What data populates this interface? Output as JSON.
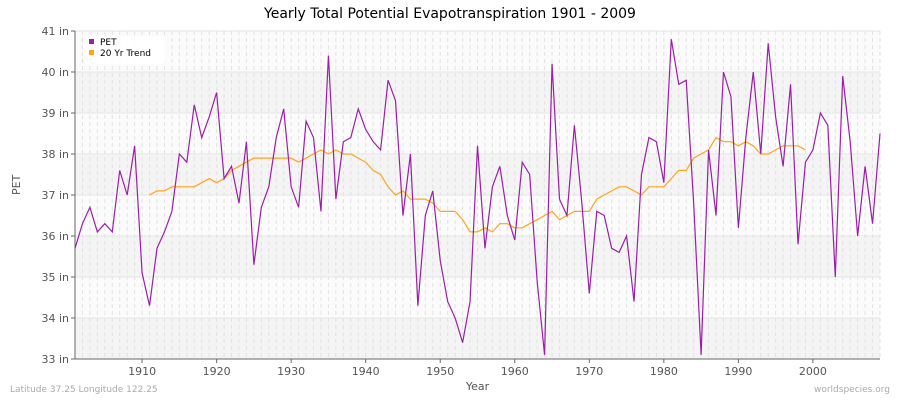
{
  "chart_data": {
    "type": "line",
    "title": "Yearly Total Potential Evapotranspiration 1901 - 2009",
    "xlabel": "Year",
    "ylabel": "PET",
    "xlim": [
      1901,
      2009
    ],
    "ylim": [
      33,
      41
    ],
    "y_ticks": [
      "33 in",
      "34 in",
      "35 in",
      "36 in",
      "37 in",
      "38 in",
      "39 in",
      "40 in",
      "41 in"
    ],
    "x_ticks": [
      "1910",
      "1920",
      "1930",
      "1940",
      "1950",
      "1960",
      "1970",
      "1980",
      "1990",
      "2000"
    ],
    "grid": true,
    "legend": "top-left",
    "series": [
      {
        "name": "PET",
        "color": "#9c1ea8",
        "start_year": 1901,
        "values": [
          35.7,
          36.3,
          36.7,
          36.1,
          36.3,
          36.1,
          37.6,
          37.0,
          38.2,
          35.1,
          34.3,
          35.7,
          36.1,
          36.6,
          38.0,
          37.8,
          39.2,
          38.4,
          38.9,
          39.5,
          37.4,
          37.7,
          36.8,
          38.3,
          35.3,
          36.7,
          37.2,
          38.4,
          39.1,
          37.2,
          36.7,
          38.8,
          38.4,
          36.6,
          40.4,
          36.9,
          38.3,
          38.4,
          39.1,
          38.6,
          38.3,
          38.1,
          39.8,
          39.3,
          36.5,
          38.0,
          34.3,
          36.5,
          37.1,
          35.4,
          34.4,
          34.0,
          33.4,
          34.4,
          38.2,
          35.7,
          37.2,
          37.7,
          36.5,
          35.9,
          37.8,
          37.5,
          34.9,
          33.1,
          40.2,
          36.9,
          36.5,
          38.7,
          36.8,
          34.6,
          36.6,
          36.5,
          35.7,
          35.6,
          36.0,
          34.4,
          37.5,
          38.4,
          38.3,
          37.3,
          40.8,
          39.7,
          39.8,
          36.8,
          33.1,
          38.1,
          36.5,
          40.0,
          39.4,
          36.2,
          38.4,
          40.0,
          38.0,
          40.7,
          38.9,
          37.7,
          39.7,
          35.8,
          37.8,
          38.1,
          39.0,
          38.7,
          35.0,
          39.9,
          38.3,
          36.0,
          37.7,
          36.3,
          38.5
        ]
      },
      {
        "name": "20 Yr Trend",
        "color": "#ffa31a",
        "start_year": 1911,
        "values": [
          37.0,
          37.1,
          37.1,
          37.2,
          37.2,
          37.2,
          37.2,
          37.3,
          37.4,
          37.3,
          37.4,
          37.6,
          37.7,
          37.8,
          37.9,
          37.9,
          37.9,
          37.9,
          37.9,
          37.9,
          37.8,
          37.9,
          38.0,
          38.1,
          38.0,
          38.1,
          38.0,
          38.0,
          37.9,
          37.8,
          37.6,
          37.5,
          37.2,
          37.0,
          37.1,
          36.9,
          36.9,
          36.9,
          36.8,
          36.6,
          36.6,
          36.6,
          36.4,
          36.1,
          36.1,
          36.2,
          36.1,
          36.3,
          36.3,
          36.2,
          36.2,
          36.3,
          36.4,
          36.5,
          36.6,
          36.4,
          36.5,
          36.6,
          36.6,
          36.6,
          36.9,
          37.0,
          37.1,
          37.2,
          37.2,
          37.1,
          37.0,
          37.2,
          37.2,
          37.2,
          37.4,
          37.6,
          37.6,
          37.9,
          38.0,
          38.1,
          38.4,
          38.3,
          38.3,
          38.2,
          38.3,
          38.2,
          38.0,
          38.0,
          38.1,
          38.2,
          38.2,
          38.2,
          38.1
        ]
      }
    ]
  },
  "footer": {
    "left": "Latitude 37.25 Longitude 122.25",
    "right": "worldspecies.org"
  }
}
